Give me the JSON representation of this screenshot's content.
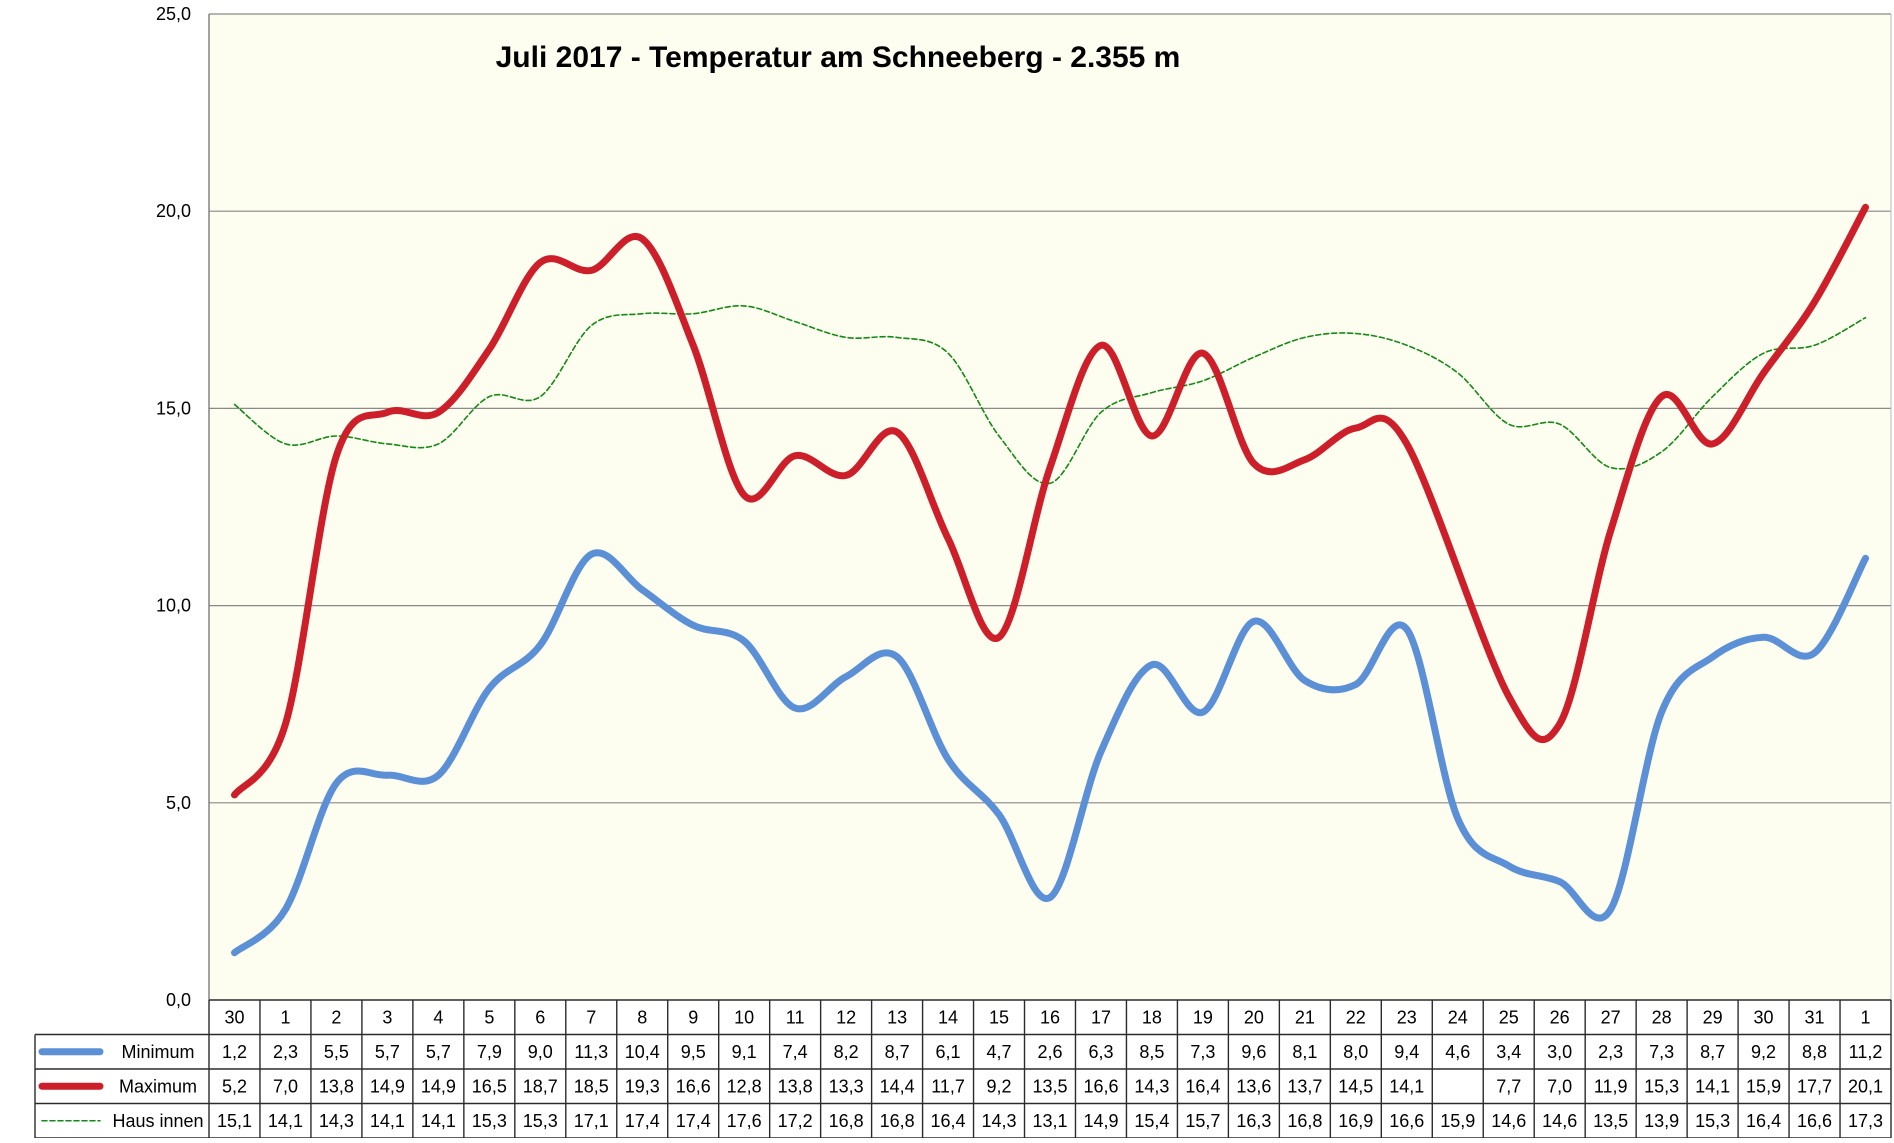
{
  "chart_data": {
    "type": "line",
    "title": "Juli 2017 - Temperatur am Schneeberg - 2.355 m",
    "ylim": [
      0,
      25
    ],
    "y_ticks": [
      "0,0",
      "5,0",
      "10,0",
      "15,0",
      "20,0",
      "25,0"
    ],
    "grid": "horizontal",
    "plot_background": "#fdfdf0",
    "data_table": true,
    "categories": [
      "30",
      "1",
      "2",
      "3",
      "4",
      "5",
      "6",
      "7",
      "8",
      "9",
      "10",
      "11",
      "12",
      "13",
      "14",
      "15",
      "16",
      "17",
      "18",
      "19",
      "20",
      "21",
      "22",
      "23",
      "24",
      "25",
      "26",
      "27",
      "28",
      "29",
      "30",
      "31",
      "1"
    ],
    "series": [
      {
        "name": "Minimum",
        "color": "#5b8fd6",
        "style": "solid-thick",
        "values": [
          1.2,
          2.3,
          5.5,
          5.7,
          5.7,
          7.9,
          9.0,
          11.3,
          10.4,
          9.5,
          9.1,
          7.4,
          8.2,
          8.7,
          6.1,
          4.7,
          2.6,
          6.3,
          8.5,
          7.3,
          9.6,
          8.1,
          8.0,
          9.4,
          4.6,
          3.4,
          3.0,
          2.3,
          7.3,
          8.7,
          9.2,
          8.8,
          11.2
        ],
        "labels": [
          "1,2",
          "2,3",
          "5,5",
          "5,7",
          "5,7",
          "7,9",
          "9,0",
          "11,3",
          "10,4",
          "9,5",
          "9,1",
          "7,4",
          "8,2",
          "8,7",
          "6,1",
          "4,7",
          "2,6",
          "6,3",
          "8,5",
          "7,3",
          "9,6",
          "8,1",
          "8,0",
          "9,4",
          "4,6",
          "3,4",
          "3,0",
          "2,3",
          "7,3",
          "8,7",
          "9,2",
          "8,8",
          "11,2"
        ]
      },
      {
        "name": "Maximum",
        "color": "#cc1f2a",
        "style": "solid-thick",
        "values": [
          5.2,
          7.0,
          13.8,
          14.9,
          14.9,
          16.5,
          18.7,
          18.5,
          19.3,
          16.6,
          12.8,
          13.8,
          13.3,
          14.4,
          11.7,
          9.2,
          13.5,
          16.6,
          14.3,
          16.4,
          13.6,
          13.7,
          14.5,
          14.1,
          null,
          7.7,
          7.0,
          11.9,
          15.3,
          14.1,
          15.9,
          17.7,
          20.1
        ],
        "labels": [
          "5,2",
          "7,0",
          "13,8",
          "14,9",
          "14,9",
          "16,5",
          "18,7",
          "18,5",
          "19,3",
          "16,6",
          "12,8",
          "13,8",
          "13,3",
          "14,4",
          "11,7",
          "9,2",
          "13,5",
          "16,6",
          "14,3",
          "16,4",
          "13,6",
          "13,7",
          "14,5",
          "14,1",
          "",
          "7,7",
          "7,0",
          "11,9",
          "15,3",
          "14,1",
          "15,9",
          "17,7",
          "20,1"
        ]
      },
      {
        "name": "Haus innen",
        "color": "#138a13",
        "style": "dashed-thin",
        "values": [
          15.1,
          14.1,
          14.3,
          14.1,
          14.1,
          15.3,
          15.3,
          17.1,
          17.4,
          17.4,
          17.6,
          17.2,
          16.8,
          16.8,
          16.4,
          14.3,
          13.1,
          14.9,
          15.4,
          15.7,
          16.3,
          16.8,
          16.9,
          16.6,
          15.9,
          14.6,
          14.6,
          13.5,
          13.9,
          15.3,
          16.4,
          16.6,
          17.3
        ],
        "labels": [
          "15,1",
          "14,1",
          "14,3",
          "14,1",
          "14,1",
          "15,3",
          "15,3",
          "17,1",
          "17,4",
          "17,4",
          "17,6",
          "17,2",
          "16,8",
          "16,8",
          "16,4",
          "14,3",
          "13,1",
          "14,9",
          "15,4",
          "15,7",
          "16,3",
          "16,8",
          "16,9",
          "16,6",
          "15,9",
          "14,6",
          "14,6",
          "13,5",
          "13,9",
          "15,3",
          "16,4",
          "16,6",
          "17,3"
        ]
      }
    ]
  }
}
